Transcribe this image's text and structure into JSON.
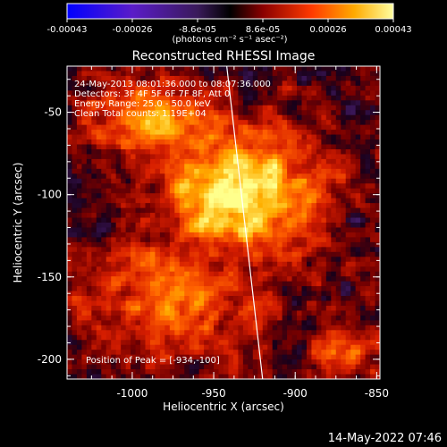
{
  "colorbar": {
    "ticks": [
      "-0.00043",
      "-0.00026",
      "-8.6e-05",
      "8.6e-05",
      "0.00026",
      "0.00043"
    ],
    "unit_label": "(photons cm⁻² s⁻¹ asec⁻²)"
  },
  "chart_data": {
    "type": "heatmap",
    "title": "Reconstructed RHESSI Image",
    "xlabel": "Heliocentric X (arcsec)",
    "ylabel": "Heliocentric Y (arcsec)",
    "xlim": [
      -1040,
      -848
    ],
    "ylim": [
      -212,
      -22
    ],
    "xticks": [
      -1000,
      -950,
      -900,
      -850
    ],
    "yticks": [
      -50,
      -100,
      -150,
      -200
    ],
    "colorscale": "rhessi-spectral",
    "value_range": [
      -0.00043,
      0.00043
    ],
    "peak": [
      -934,
      -100
    ],
    "limb_line": [
      [
        -942,
        -22
      ],
      [
        -920,
        -212
      ]
    ],
    "annotations": [
      "24-May-2013 08:01:36.000 to 08:07:36.000",
      "Detectors: 3F 4F 5F 6F 7F 8F, Att 0",
      "Energy Range: 25.0 - 50.0 keV",
      "Clean    Total counts: 1.19E+04",
      "Position of Peak = [-934,-100]"
    ]
  },
  "footer": {
    "timestamp": "14-May-2022 07:46"
  }
}
